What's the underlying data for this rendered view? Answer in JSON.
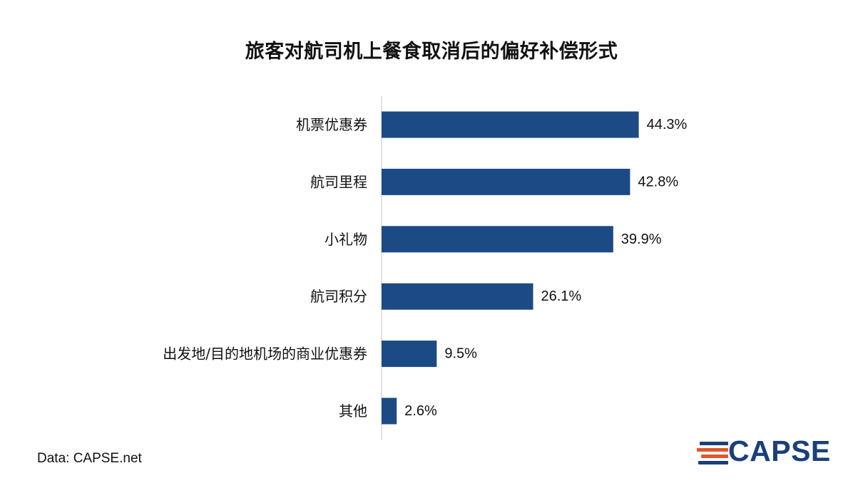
{
  "title": "旅客对航司机上餐食取消后的偏好补偿形式",
  "source": "Data: CAPSE.net",
  "logo": {
    "text": "CAPSE",
    "color": "#1b3f7a",
    "accent": "#e0562b"
  },
  "chart_data": {
    "type": "bar",
    "orientation": "horizontal",
    "title": "旅客对航司机上餐食取消后的偏好补偿形式",
    "categories": [
      "机票优惠券",
      "航司里程",
      "小礼物",
      "航司积分",
      "出发地/目的地机场的商业优惠券",
      "其他"
    ],
    "values": [
      44.3,
      42.8,
      39.9,
      26.1,
      9.5,
      2.6
    ],
    "value_labels": [
      "44.3%",
      "42.8%",
      "39.9%",
      "26.1%",
      "9.5%",
      "2.6%"
    ],
    "unit": "%",
    "xlim": [
      0,
      50
    ],
    "bar_color": "#1b4a85",
    "grid": false,
    "legend": "none"
  }
}
